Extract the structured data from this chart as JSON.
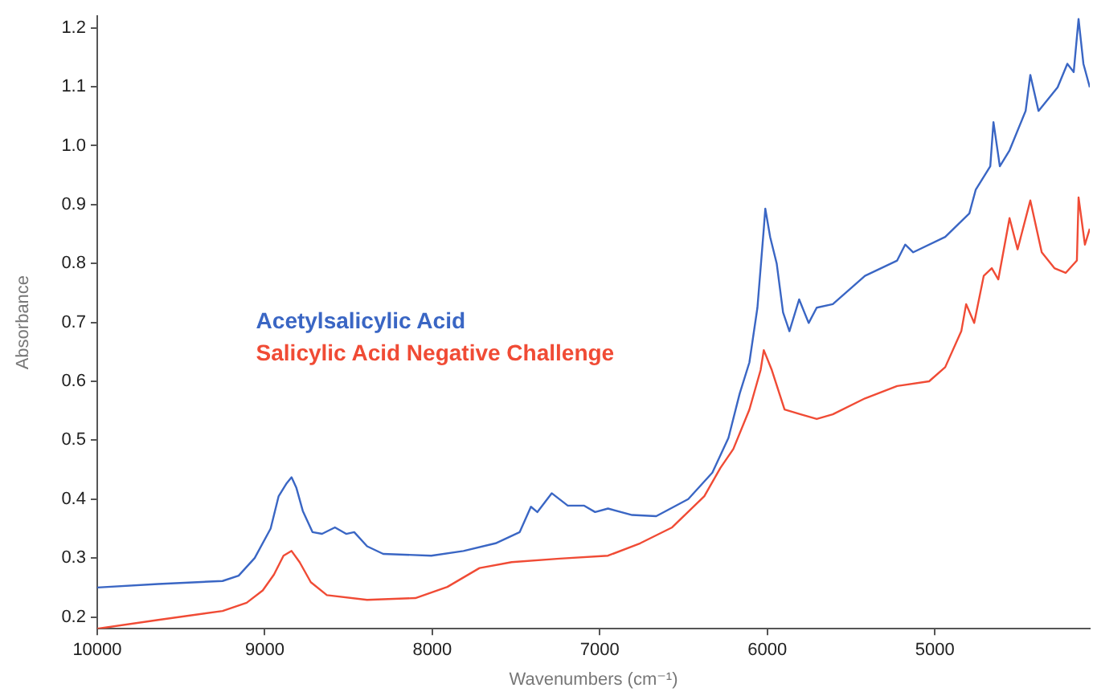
{
  "chart_data": {
    "type": "line",
    "xlabel": "Wavenumbers (cm⁻¹)",
    "ylabel": "Absorbance",
    "xlim": [
      10000,
      4075
    ],
    "xticks": [
      10000,
      9000,
      8000,
      7000,
      6000,
      5000
    ],
    "ylim": [
      0.18,
      1.22
    ],
    "yticks": [
      0.2,
      0.3,
      0.4,
      0.5,
      0.6,
      0.7,
      0.8,
      0.9,
      {
        "value": 1,
        "label": "1.0"
      },
      1.1,
      1.2
    ],
    "grid": false,
    "legend": "left",
    "marker": "none",
    "line_style": "solid",
    "series": [
      {
        "name": "Acetylsalicylic Acid",
        "color": "#3a66c4",
        "x": [
          10000,
          9636,
          9252,
          9156,
          9060,
          8965,
          8917,
          8869,
          8840,
          8811,
          8773,
          8715,
          8658,
          8581,
          8514,
          8466,
          8389,
          8293,
          8006,
          7814,
          7622,
          7478,
          7411,
          7373,
          7287,
          7191,
          7095,
          7028,
          6951,
          6807,
          6663,
          6472,
          6328,
          6232,
          6165,
          6107,
          6059,
          6021,
          6012,
          5983,
          5944,
          5906,
          5868,
          5810,
          5753,
          5705,
          5609,
          5417,
          5225,
          5177,
          5129,
          4938,
          4794,
          4756,
          4669,
          4650,
          4612,
          4554,
          4458,
          4430,
          4381,
          4267,
          4209,
          4171,
          4142,
          4113,
          4075
        ],
        "values": [
          0.25,
          0.256,
          0.261,
          0.27,
          0.3,
          0.35,
          0.405,
          0.427,
          0.437,
          0.419,
          0.38,
          0.344,
          0.341,
          0.352,
          0.341,
          0.344,
          0.32,
          0.307,
          0.304,
          0.312,
          0.325,
          0.344,
          0.387,
          0.378,
          0.41,
          0.389,
          0.389,
          0.378,
          0.384,
          0.373,
          0.371,
          0.4,
          0.445,
          0.504,
          0.579,
          0.632,
          0.725,
          0.859,
          0.893,
          0.845,
          0.8,
          0.717,
          0.685,
          0.739,
          0.699,
          0.725,
          0.731,
          0.779,
          0.805,
          0.832,
          0.819,
          0.845,
          0.885,
          0.925,
          0.965,
          1.04,
          0.965,
          0.992,
          1.059,
          1.12,
          1.059,
          1.099,
          1.139,
          1.125,
          1.215,
          1.139,
          1.099
        ]
      },
      {
        "name": "Salicylic Acid Negative Challenge",
        "color": "#f04b35",
        "x": [
          10000,
          9636,
          9252,
          9108,
          9012,
          8945,
          8888,
          8840,
          8792,
          8725,
          8629,
          8389,
          8101,
          7910,
          7718,
          7526,
          7239,
          6951,
          6759,
          6568,
          6376,
          6280,
          6203,
          6107,
          6040,
          6021,
          5973,
          5897,
          5801,
          5705,
          5609,
          5417,
          5225,
          5034,
          4938,
          4842,
          4813,
          4765,
          4708,
          4660,
          4621,
          4554,
          4506,
          4430,
          4362,
          4286,
          4219,
          4152,
          4142,
          4104,
          4075
        ],
        "values": [
          0.18,
          0.195,
          0.21,
          0.224,
          0.245,
          0.272,
          0.304,
          0.312,
          0.293,
          0.259,
          0.237,
          0.229,
          0.232,
          0.251,
          0.283,
          0.293,
          0.299,
          0.304,
          0.325,
          0.352,
          0.405,
          0.453,
          0.485,
          0.552,
          0.619,
          0.653,
          0.619,
          0.552,
          0.544,
          0.536,
          0.544,
          0.571,
          0.592,
          0.6,
          0.624,
          0.685,
          0.731,
          0.699,
          0.779,
          0.792,
          0.773,
          0.877,
          0.824,
          0.907,
          0.819,
          0.792,
          0.784,
          0.805,
          0.912,
          0.832,
          0.859
        ]
      }
    ]
  }
}
